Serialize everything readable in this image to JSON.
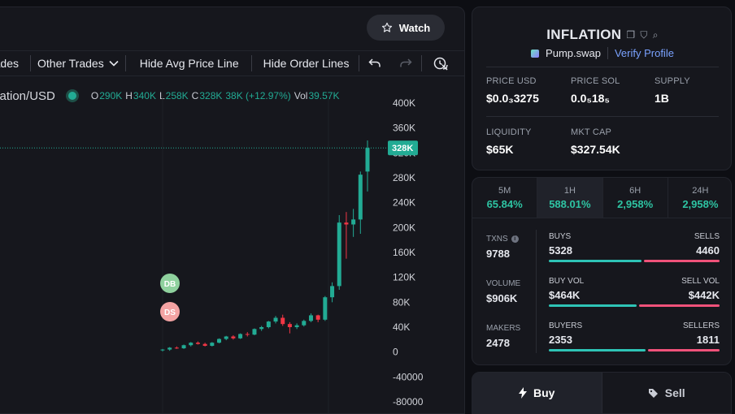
{
  "chart_header": {
    "watch_label": "Watch",
    "watch_icon": "star-icon"
  },
  "toolbar": {
    "trades_label": "ades",
    "other_trades_label": "Other Trades",
    "hide_avg_price_label": "Hide Avg Price Line",
    "hide_order_lines_label": "Hide Order Lines"
  },
  "legend": {
    "symbol": "flation/USD",
    "open_key": "O",
    "open": "290K",
    "high_key": "H",
    "high": "340K",
    "low_key": "L",
    "low": "258K",
    "close_key": "C",
    "close": "328K",
    "change": "38K (+12.97%)",
    "vol_key": "Vol",
    "vol": "39.57K"
  },
  "chart_data": {
    "type": "candlestick",
    "y_ticks": [
      "400K",
      "360K",
      "320K",
      "280K",
      "240K",
      "200K",
      "160K",
      "120K",
      "80K",
      "40K",
      "0",
      "-40000",
      "-80000"
    ],
    "ylim": [
      -80000,
      400000
    ],
    "last_price": 328000,
    "last_price_label": "328K",
    "colors": {
      "up": "#22ab94",
      "down": "#f23645"
    },
    "markers": [
      {
        "label": "DB",
        "color": "#8fd19e"
      },
      {
        "label": "DS",
        "color": "#f4a3a3"
      }
    ],
    "candles": [
      {
        "o": 3000,
        "h": 5000,
        "l": 1000,
        "c": 4000
      },
      {
        "o": 4000,
        "h": 8000,
        "l": 2000,
        "c": 7000
      },
      {
        "o": 7000,
        "h": 9000,
        "l": 5000,
        "c": 6000
      },
      {
        "o": 6000,
        "h": 12000,
        "l": 5000,
        "c": 11000
      },
      {
        "o": 11000,
        "h": 16000,
        "l": 9000,
        "c": 15000
      },
      {
        "o": 15000,
        "h": 17000,
        "l": 12000,
        "c": 13000
      },
      {
        "o": 13000,
        "h": 15000,
        "l": 9000,
        "c": 10000
      },
      {
        "o": 10000,
        "h": 16000,
        "l": 9000,
        "c": 15000
      },
      {
        "o": 15000,
        "h": 22000,
        "l": 14000,
        "c": 21000
      },
      {
        "o": 21000,
        "h": 26000,
        "l": 19000,
        "c": 25000
      },
      {
        "o": 25000,
        "h": 27000,
        "l": 20000,
        "c": 22000
      },
      {
        "o": 22000,
        "h": 30000,
        "l": 21000,
        "c": 29000
      },
      {
        "o": 29000,
        "h": 32000,
        "l": 25000,
        "c": 28000
      },
      {
        "o": 28000,
        "h": 38000,
        "l": 27000,
        "c": 37000
      },
      {
        "o": 37000,
        "h": 42000,
        "l": 34000,
        "c": 40000
      },
      {
        "o": 40000,
        "h": 50000,
        "l": 38000,
        "c": 49000
      },
      {
        "o": 49000,
        "h": 58000,
        "l": 46000,
        "c": 55000
      },
      {
        "o": 55000,
        "h": 60000,
        "l": 42000,
        "c": 45000
      },
      {
        "o": 45000,
        "h": 48000,
        "l": 30000,
        "c": 40000
      },
      {
        "o": 40000,
        "h": 46000,
        "l": 37000,
        "c": 43000
      },
      {
        "o": 43000,
        "h": 52000,
        "l": 41000,
        "c": 50000
      },
      {
        "o": 50000,
        "h": 62000,
        "l": 48000,
        "c": 59000
      },
      {
        "o": 59000,
        "h": 60000,
        "l": 48000,
        "c": 52000
      },
      {
        "o": 52000,
        "h": 90000,
        "l": 50000,
        "c": 88000
      },
      {
        "o": 88000,
        "h": 112000,
        "l": 80000,
        "c": 106000
      },
      {
        "o": 106000,
        "h": 220000,
        "l": 100000,
        "c": 208000
      },
      {
        "o": 208000,
        "h": 225000,
        "l": 150000,
        "c": 205000
      },
      {
        "o": 205000,
        "h": 230000,
        "l": 185000,
        "c": 213000
      },
      {
        "o": 213000,
        "h": 290000,
        "l": 190000,
        "c": 285000
      },
      {
        "o": 290000,
        "h": 340000,
        "l": 258000,
        "c": 328000
      }
    ]
  },
  "token": {
    "name": "INFLATION",
    "platform": "Pump.swap",
    "verify_label": "Verify Profile",
    "price_usd_label": "PRICE USD",
    "price_usd": "$0.0₃3275",
    "price_sol_label": "PRICE SOL",
    "price_sol": "0.0₅18₅",
    "supply_label": "SUPPLY",
    "supply": "1B",
    "liquidity_label": "LIQUIDITY",
    "liquidity": "$65K",
    "mkt_cap_label": "MKT CAP",
    "mkt_cap": "$327.54K"
  },
  "timeframes": [
    {
      "name": "5M",
      "pct": "65.84%"
    },
    {
      "name": "1H",
      "pct": "588.01%"
    },
    {
      "name": "6H",
      "pct": "2,958%"
    },
    {
      "name": "24H",
      "pct": "2,958%"
    }
  ],
  "tx": {
    "txns_label": "TXNS",
    "txns": "9788",
    "volume_label": "VOLUME",
    "volume": "$906K",
    "makers_label": "MAKERS",
    "makers": "2478",
    "buys_label": "BUYS",
    "buys": "5328",
    "sells_label": "SELLS",
    "sells": "4460",
    "buys_fraction": 0.544,
    "buy_vol_label": "BUY VOL",
    "buy_vol": "$464K",
    "sell_vol_label": "SELL VOL",
    "sell_vol": "$442K",
    "buy_vol_fraction": 0.512,
    "buyers_label": "BUYERS",
    "buyers": "2353",
    "sellers_label": "SELLERS",
    "sellers": "1811",
    "buyers_fraction": 0.565
  },
  "trade": {
    "buy_label": "Buy",
    "sell_label": "Sell"
  }
}
